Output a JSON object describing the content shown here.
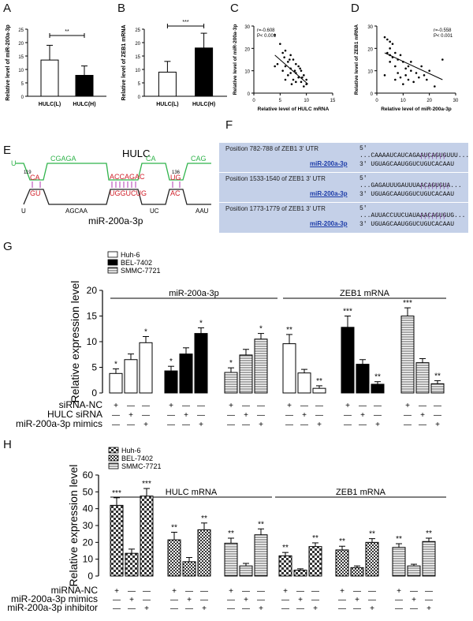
{
  "panels": {
    "A": "A",
    "B": "B",
    "C": "C",
    "D": "D",
    "E": "E",
    "F": "F",
    "G": "G",
    "H": "H"
  },
  "panel_a": {
    "ylabel": "Relative level of miR-200a-3p",
    "categories": [
      "HULC(L)",
      "HULC(H)"
    ],
    "values": [
      13.5,
      7.8
    ],
    "errors": [
      5.5,
      3.5
    ],
    "yticks": [
      "0",
      "5",
      "10",
      "15",
      "20",
      "25"
    ],
    "sig": "**"
  },
  "panel_b": {
    "ylabel": "Relative level of ZEB1 mRNA",
    "categories": [
      "HULC(L)",
      "HULC(H)"
    ],
    "values": [
      9.0,
      18.0
    ],
    "errors": [
      4.0,
      5.5
    ],
    "yticks": [
      "0",
      "5",
      "10",
      "15",
      "20",
      "25"
    ],
    "sig": "***"
  },
  "panel_c": {
    "ylabel": "Relative level of miR-200a-3p",
    "xlabel": "Relative level of HULC mRNA",
    "stats": [
      "r=-0.608",
      "P< 0.001"
    ],
    "xticks": [
      "0",
      "5",
      "10",
      "15"
    ],
    "yticks": [
      "0",
      "10",
      "20",
      "30"
    ]
  },
  "panel_d": {
    "ylabel": "Relative level of ZEB1 mRNA",
    "xlabel": "Relative level of miR-200a-3p",
    "stats": [
      "r=-0.558",
      "P< 0.001"
    ],
    "xticks": [
      "0",
      "10",
      "20",
      "30"
    ],
    "yticks": [
      "0",
      "10",
      "20",
      "30"
    ]
  },
  "panel_e": {
    "title": "HULC",
    "mir": "miR-200a-3p",
    "top_seq": [
      "U",
      "CGAGA",
      "CA",
      "CAG"
    ],
    "num1": "119",
    "num2": "136",
    "pair_top": [
      "CA",
      "ACCAGAC",
      "UG"
    ],
    "pair_bottom": [
      "GU",
      "UGGUCUG",
      "AC"
    ],
    "bottom_seq": [
      "U",
      "AGCAA",
      "UC",
      "AAU"
    ]
  },
  "panel_f": {
    "rows": [
      {
        "pos": "Position 782-788 of ZEB1 3' UTR",
        "seq1": "5'  ...CAAAAUCAUCAGAAUCAGUGUUU...",
        "bars": "|||||||",
        "mir": "miR-200a-3p",
        "seq2": "3'    UGUAGCAAUGGUCUGUCACAAU"
      },
      {
        "pos": "Position 1533-1540 of ZEB1 3' UTR",
        "seq1": "5'  ...GAGAUUUGAUUUAACAGUGUA...",
        "bars": "||||||||",
        "mir": "miR-200a-3p",
        "seq2": "3'    UGUAGCAAUGGUCUGUCACAAU"
      },
      {
        "pos": "Position 1773-1779 of ZEB1 3' UTR",
        "seq1": "5'  ...AUUACCUUCUAUAAACAGUGUG...",
        "bars": "|||||||",
        "mir": "miR-200a-3p",
        "seq2": "3'    UGUAGCAAUGGUCUGUCACAAU"
      }
    ]
  },
  "chart_data": [
    {
      "panel": "G",
      "type": "bar",
      "ylabel": "Relative expression level",
      "ylim": [
        0,
        20
      ],
      "yticks": [
        "0",
        "5",
        "10",
        "15",
        "20"
      ],
      "groups": [
        "miR-200a-3p",
        "ZEB1 mRNA"
      ],
      "series": [
        {
          "name": "Huh-6",
          "pattern": "white"
        },
        {
          "name": "BEL-7402",
          "pattern": "black"
        },
        {
          "name": "SMMC-7721",
          "pattern": "hlines"
        }
      ],
      "clusters": [
        {
          "series": 0,
          "values": [
            3.8,
            6.5,
            9.8
          ],
          "errors": [
            0.9,
            1.1,
            1.2
          ],
          "sig": [
            "*",
            "",
            "*"
          ]
        },
        {
          "series": 1,
          "values": [
            4.3,
            7.6,
            11.6
          ],
          "errors": [
            0.9,
            1.2,
            1.1
          ],
          "sig": [
            "*",
            "",
            "*"
          ]
        },
        {
          "series": 2,
          "values": [
            4.0,
            7.4,
            10.5
          ],
          "errors": [
            0.9,
            1.1,
            1.1
          ],
          "sig": [
            "*",
            "",
            "*"
          ]
        },
        {
          "series": 0,
          "values": [
            9.6,
            3.9,
            0.9
          ],
          "errors": [
            1.8,
            0.7,
            0.5
          ],
          "sig": [
            "**",
            "",
            "**"
          ]
        },
        {
          "series": 1,
          "values": [
            12.8,
            5.6,
            1.7
          ],
          "errors": [
            2.2,
            0.9,
            0.5
          ],
          "sig": [
            "***",
            "",
            "**"
          ]
        },
        {
          "series": 2,
          "values": [
            15.0,
            5.9,
            1.8
          ],
          "errors": [
            1.6,
            0.8,
            0.6
          ],
          "sig": [
            "***",
            "",
            "**"
          ]
        }
      ],
      "conditions": [
        {
          "label": "siRNA-NC",
          "signs": [
            "+",
            "—",
            "—"
          ]
        },
        {
          "label": "HULC siRNA",
          "signs": [
            "—",
            "+",
            "—"
          ]
        },
        {
          "label": "miR-200a-3p mimics",
          "signs": [
            "—",
            "—",
            "+"
          ]
        }
      ]
    },
    {
      "panel": "H",
      "type": "bar",
      "ylabel": "Relative expression level",
      "ylim": [
        0,
        60
      ],
      "yticks": [
        "0",
        "10",
        "20",
        "30",
        "40",
        "50",
        "60"
      ],
      "groups": [
        "HULC mRNA",
        "ZEB1 mRNA"
      ],
      "series": [
        {
          "name": "Huh-6",
          "pattern": "checker"
        },
        {
          "name": "BEL-7402",
          "pattern": "checker-small"
        },
        {
          "name": "SMMC-7721",
          "pattern": "hlines"
        }
      ],
      "clusters": [
        {
          "series": 0,
          "values": [
            42,
            13.5,
            47.5
          ],
          "errors": [
            4.5,
            2.5,
            4.5
          ],
          "sig": [
            "***",
            "",
            "***"
          ]
        },
        {
          "series": 1,
          "values": [
            21.5,
            8.5,
            27.5
          ],
          "errors": [
            4.5,
            2.5,
            4.0
          ],
          "sig": [
            "**",
            "",
            "**"
          ]
        },
        {
          "series": 2,
          "values": [
            19.5,
            6.0,
            24.5
          ],
          "errors": [
            3.0,
            1.5,
            3.5
          ],
          "sig": [
            "**",
            "",
            "**"
          ]
        },
        {
          "series": 0,
          "values": [
            12.0,
            3.5,
            17.5
          ],
          "errors": [
            2.0,
            0.8,
            2.2
          ],
          "sig": [
            "**",
            "",
            "**"
          ]
        },
        {
          "series": 1,
          "values": [
            15.5,
            5.0,
            20.0
          ],
          "errors": [
            2.2,
            1.0,
            2.2
          ],
          "sig": [
            "**",
            "",
            "**"
          ]
        },
        {
          "series": 2,
          "values": [
            17.0,
            6.0,
            20.5
          ],
          "errors": [
            2.2,
            1.0,
            2.0
          ],
          "sig": [
            "**",
            "",
            "**"
          ]
        }
      ],
      "conditions": [
        {
          "label": "miRNA-NC",
          "signs": [
            "+",
            "—",
            "—"
          ]
        },
        {
          "label": "miR-200a-3p mimics",
          "signs": [
            "—",
            "+",
            "—"
          ]
        },
        {
          "label": "miR-200a-3p inhibitor",
          "signs": [
            "—",
            "—",
            "+"
          ]
        }
      ]
    }
  ]
}
